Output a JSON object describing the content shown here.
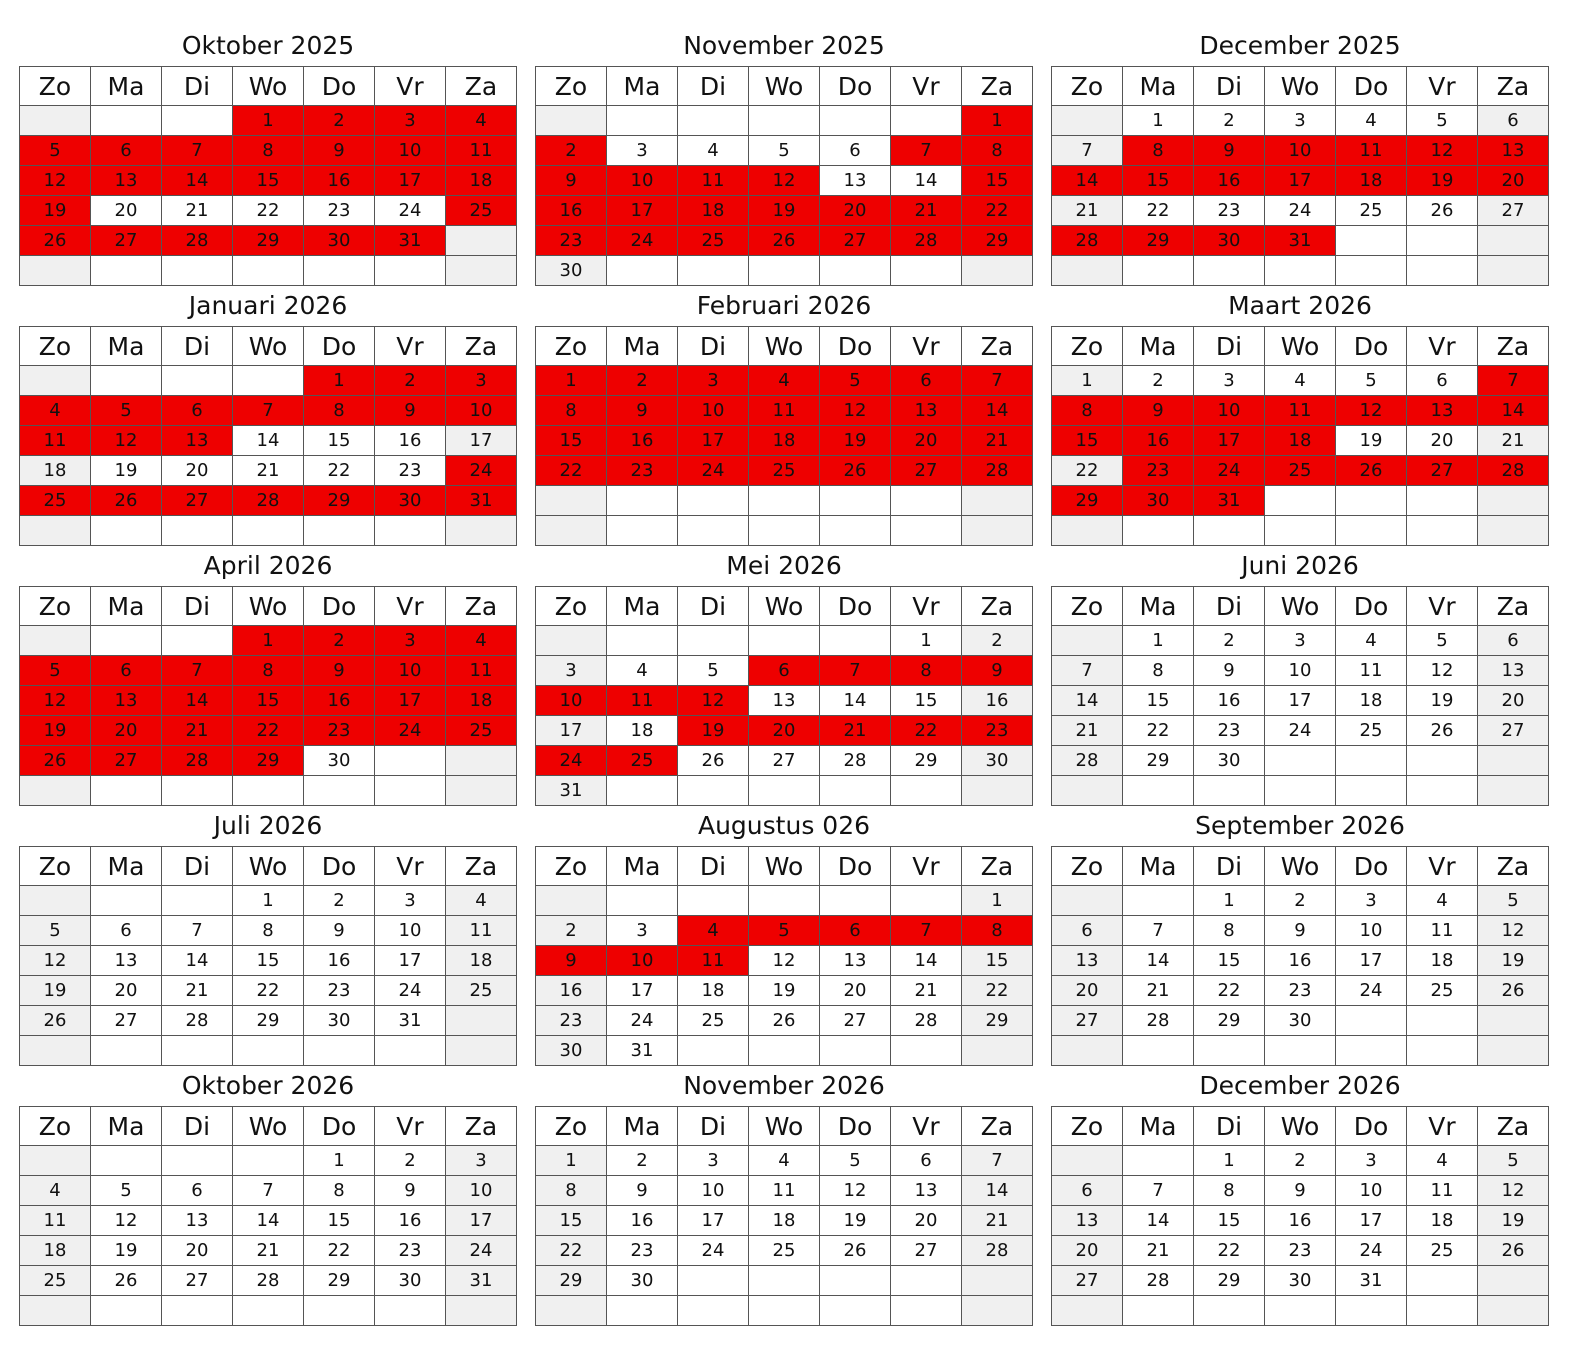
{
  "weekdays": [
    "Zo",
    "Ma",
    "Di",
    "Wo",
    "Do",
    "Vr",
    "Za"
  ],
  "colors": {
    "highlight": "#ee0000",
    "weekend": "#f0f0f0",
    "border": "#555555"
  },
  "months": [
    {
      "title": "Oktober 2025",
      "offset": 3,
      "days": 31,
      "highlight": [
        1,
        2,
        3,
        4,
        5,
        6,
        7,
        8,
        9,
        10,
        11,
        12,
        13,
        14,
        15,
        16,
        17,
        18,
        19,
        25,
        26,
        27,
        28,
        29,
        30,
        31
      ]
    },
    {
      "title": "November 2025",
      "offset": 6,
      "days": 30,
      "highlight": [
        1,
        2,
        7,
        8,
        9,
        10,
        11,
        12,
        15,
        16,
        17,
        18,
        19,
        20,
        21,
        22,
        23,
        24,
        25,
        26,
        27,
        28,
        29
      ]
    },
    {
      "title": "December 2025",
      "offset": 1,
      "days": 31,
      "highlight": [
        8,
        9,
        10,
        11,
        12,
        13,
        14,
        15,
        16,
        17,
        18,
        19,
        20,
        28,
        29,
        30,
        31
      ]
    },
    {
      "title": "Januari 2026",
      "offset": 4,
      "days": 31,
      "highlight": [
        1,
        2,
        3,
        4,
        5,
        6,
        7,
        8,
        9,
        10,
        11,
        12,
        13,
        24,
        25,
        26,
        27,
        28,
        29,
        30,
        31
      ]
    },
    {
      "title": "Februari 2026",
      "offset": 0,
      "days": 28,
      "highlight": [
        1,
        2,
        3,
        4,
        5,
        6,
        7,
        8,
        9,
        10,
        11,
        12,
        13,
        14,
        15,
        16,
        17,
        18,
        19,
        20,
        21,
        22,
        23,
        24,
        25,
        26,
        27,
        28
      ]
    },
    {
      "title": "Maart 2026",
      "offset": 0,
      "days": 31,
      "highlight": [
        7,
        8,
        9,
        10,
        11,
        12,
        13,
        14,
        15,
        16,
        17,
        18,
        23,
        24,
        25,
        26,
        27,
        28,
        29,
        30,
        31
      ]
    },
    {
      "title": "April 2026",
      "offset": 3,
      "days": 30,
      "highlight": [
        1,
        2,
        3,
        4,
        5,
        6,
        7,
        8,
        9,
        10,
        11,
        12,
        13,
        14,
        15,
        16,
        17,
        18,
        19,
        20,
        21,
        22,
        23,
        24,
        25,
        26,
        27,
        28,
        29
      ]
    },
    {
      "title": "Mei 2026",
      "offset": 5,
      "days": 31,
      "highlight": [
        6,
        7,
        8,
        9,
        10,
        11,
        12,
        19,
        20,
        21,
        22,
        23,
        24,
        25
      ]
    },
    {
      "title": "Juni 2026",
      "offset": 1,
      "days": 30,
      "highlight": []
    },
    {
      "title": "Juli 2026",
      "offset": 3,
      "days": 31,
      "highlight": []
    },
    {
      "title": "Augustus 026",
      "offset": 6,
      "days": 31,
      "highlight": [
        4,
        5,
        6,
        7,
        8,
        9,
        10,
        11
      ]
    },
    {
      "title": "September 2026",
      "offset": 2,
      "days": 30,
      "highlight": []
    },
    {
      "title": "Oktober 2026",
      "offset": 4,
      "days": 31,
      "highlight": []
    },
    {
      "title": "November 2026",
      "offset": 0,
      "days": 30,
      "highlight": []
    },
    {
      "title": "December 2026",
      "offset": 2,
      "days": 31,
      "highlight": []
    }
  ]
}
